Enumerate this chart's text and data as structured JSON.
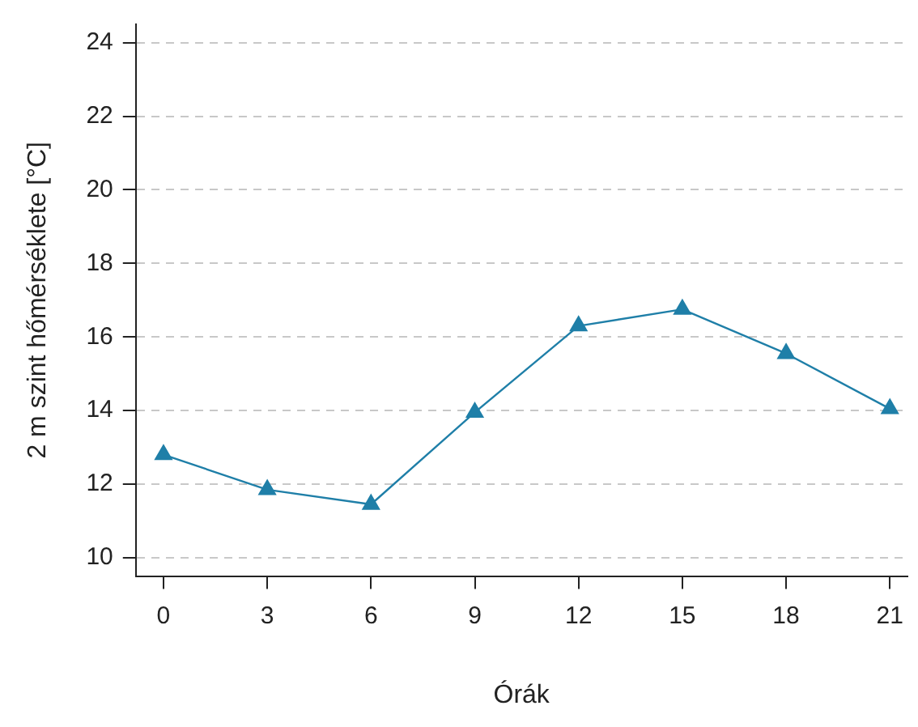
{
  "chart_data": {
    "type": "line",
    "xlabel": "Órák",
    "ylabel": "2 m szint hőmérséklete [°C]",
    "x": [
      0,
      3,
      6,
      9,
      12,
      15,
      18,
      21
    ],
    "series": [
      {
        "color": "#1f7fa8",
        "values": [
          12.8,
          11.85,
          11.45,
          13.95,
          16.3,
          16.75,
          15.55,
          14.05
        ]
      }
    ],
    "xlim": [
      -0.8,
      21.5
    ],
    "xticks": [
      0,
      3,
      6,
      9,
      12,
      15,
      18,
      21
    ],
    "ylim": [
      9.5,
      24.5
    ],
    "yticks": [
      10,
      12,
      14,
      16,
      18,
      20,
      22,
      24
    ],
    "grid": "y",
    "marker": "triangle",
    "line_style": "solid",
    "legend": false
  }
}
